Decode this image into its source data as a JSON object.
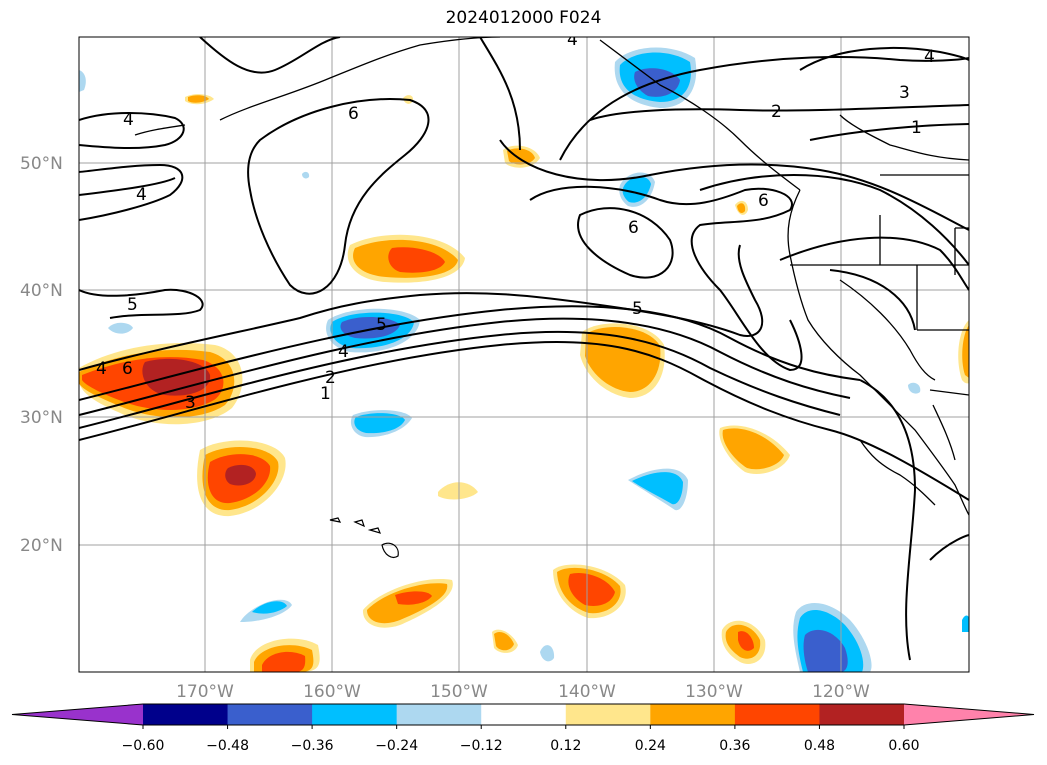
{
  "title": "2024012000 F024",
  "latitude_labels": [
    "50°N",
    "40°N",
    "30°N",
    "20°N"
  ],
  "longitude_labels": [
    "170°W",
    "160°W",
    "150°W",
    "140°W",
    "130°W",
    "120°W"
  ],
  "colorbar": {
    "ticks": [
      "−0.60",
      "−0.48",
      "−0.36",
      "−0.24",
      "−0.12",
      "0.12",
      "0.24",
      "0.36",
      "0.48",
      "0.60"
    ],
    "colors": [
      "#9932cc",
      "#00008b",
      "#3a5fcd",
      "#00bfff",
      "#add8f0",
      "#ffffff",
      "#ffe68c",
      "#ffa500",
      "#ff4500",
      "#b22222",
      "#ff82ab"
    ]
  },
  "contour_labels": [
    "4",
    "4",
    "4",
    "6",
    "4",
    "2",
    "3",
    "1",
    "4",
    "6",
    "6",
    "5",
    "5",
    "4",
    "6",
    "2",
    "3",
    "1",
    "5"
  ]
}
